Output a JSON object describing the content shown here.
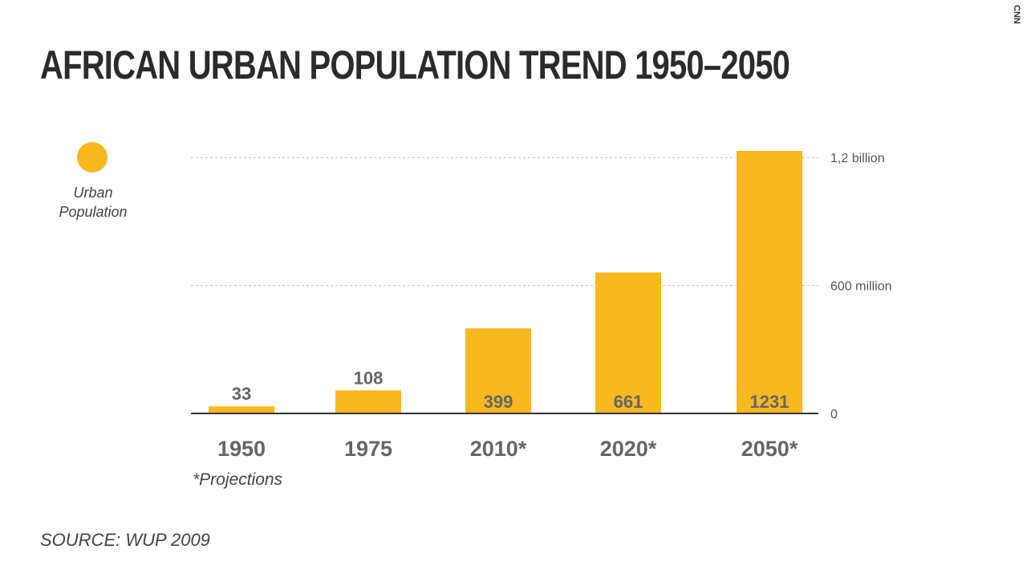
{
  "title": "AFRICAN URBAN POPULATION TREND 1950–2050",
  "brand": "CNN",
  "legend": {
    "label_line1": "Urban",
    "label_line2": "Population",
    "color": "#f8b820"
  },
  "note": "*Projections",
  "source": "SOURCE: WUP 2009",
  "chart_data": {
    "type": "bar",
    "categories": [
      "1950",
      "1975",
      "2010*",
      "2020*",
      "2050*"
    ],
    "values": [
      33,
      108,
      399,
      661,
      1231
    ],
    "value_labels": [
      "33",
      "108",
      "399",
      "661",
      "1231"
    ],
    "unit": "million",
    "title": "AFRICAN URBAN POPULATION TREND 1950–2050",
    "series": [
      {
        "name": "Urban Population",
        "values": [
          33,
          108,
          399,
          661,
          1231
        ]
      }
    ],
    "ylim": [
      0,
      1231
    ],
    "yticks": [
      {
        "value": 0,
        "label": "0"
      },
      {
        "value": 600,
        "label": "600 million"
      },
      {
        "value": 1200,
        "label": "1,2 billion"
      }
    ],
    "grid": true,
    "legend_position": "left",
    "bar_color": "#f8b820"
  }
}
